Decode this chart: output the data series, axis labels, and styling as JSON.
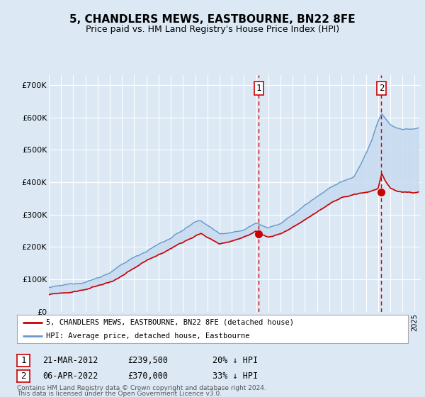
{
  "title": "5, CHANDLERS MEWS, EASTBOURNE, BN22 8FE",
  "subtitle": "Price paid vs. HM Land Registry's House Price Index (HPI)",
  "background_color": "#dce9f5",
  "plot_bg_color": "#dce9f5",
  "yticks": [
    0,
    100000,
    200000,
    300000,
    400000,
    500000,
    600000,
    700000
  ],
  "ytick_labels": [
    "£0",
    "£100K",
    "£200K",
    "£300K",
    "£400K",
    "£500K",
    "£600K",
    "£700K"
  ],
  "sale1_date": "21-MAR-2012",
  "sale1_price": 239500,
  "sale1_price_str": "£239,500",
  "sale1_pct": "20% ↓ HPI",
  "sale2_date": "06-APR-2022",
  "sale2_price": 370000,
  "sale2_price_str": "£370,000",
  "sale2_pct": "33% ↓ HPI",
  "legend_label1": "5, CHANDLERS MEWS, EASTBOURNE, BN22 8FE (detached house)",
  "legend_label2": "HPI: Average price, detached house, Eastbourne",
  "footer1": "Contains HM Land Registry data © Crown copyright and database right 2024.",
  "footer2": "This data is licensed under the Open Government Licence v3.0.",
  "line1_color": "#cc0000",
  "line2_color": "#6699cc",
  "fill_color": "#c5d9ef",
  "vline_color": "#cc0000",
  "sale1_x": 2012.22,
  "sale1_y": 239500,
  "sale2_x": 2022.27,
  "sale2_y": 370000,
  "xmin": 1995,
  "xmax": 2025.5,
  "ymin": 0,
  "ymax": 730000
}
